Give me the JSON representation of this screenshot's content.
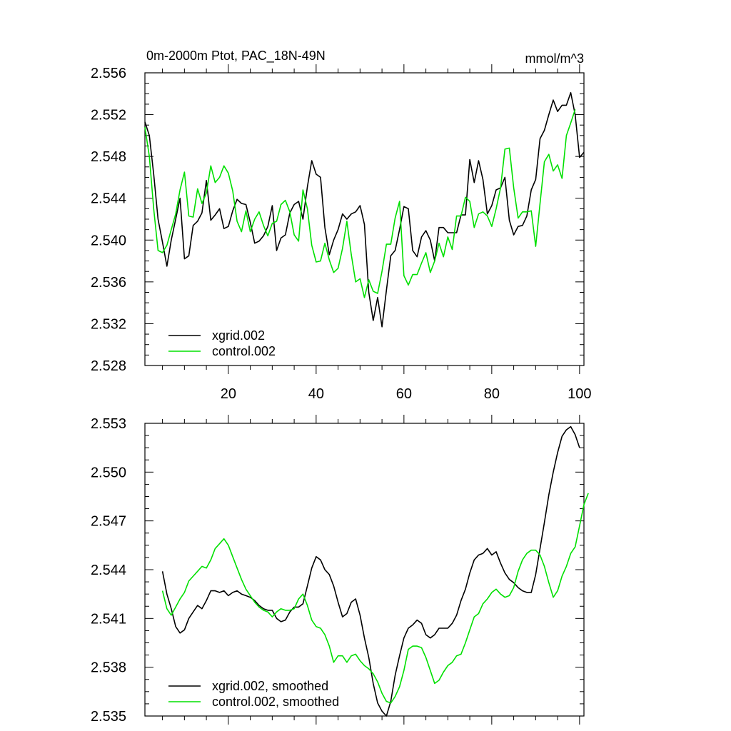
{
  "chart_data": [
    {
      "type": "line",
      "title": "0m-2000m Ptot, PAC_18N-49N",
      "units": "mmol/m^3",
      "xlim": [
        1,
        101
      ],
      "ylim": [
        2.528,
        2.556
      ],
      "x_ticks": [
        20,
        40,
        60,
        80,
        100
      ],
      "y_ticks": [
        "2.528",
        "2.532",
        "2.536",
        "2.540",
        "2.544",
        "2.548",
        "2.552",
        "2.556"
      ],
      "x_start": 1,
      "legend_position": "bottom-left",
      "series": [
        {
          "name": "xgrid.002",
          "color": "#000000",
          "values": [
            2.5513,
            2.55,
            2.5463,
            2.542,
            2.5398,
            2.5375,
            2.54,
            2.542,
            2.544,
            2.5382,
            2.5385,
            2.5414,
            2.5418,
            2.5426,
            2.5457,
            2.5419,
            2.5424,
            2.543,
            2.5411,
            2.5413,
            2.5428,
            2.5439,
            2.5435,
            2.5434,
            2.5417,
            2.5397,
            2.5399,
            2.5404,
            2.5413,
            2.5433,
            2.539,
            2.5402,
            2.5405,
            2.5426,
            2.5434,
            2.5437,
            2.542,
            2.5451,
            2.5476,
            2.5463,
            2.546,
            2.5412,
            2.5386,
            2.54,
            2.541,
            2.5425,
            2.542,
            2.5425,
            2.5427,
            2.5433,
            2.5415,
            2.535,
            2.5323,
            2.5345,
            2.5317,
            2.5352,
            2.5385,
            2.539,
            2.541,
            2.5432,
            2.543,
            2.539,
            2.5384,
            2.5403,
            2.5409,
            2.54,
            2.538,
            2.5412,
            2.5412,
            2.5407,
            2.5407,
            2.5407,
            2.5424,
            2.5424,
            2.5477,
            2.5455,
            2.5476,
            2.5458,
            2.5425,
            2.5433,
            2.5448,
            2.545,
            2.546,
            2.5419,
            2.5405,
            2.5413,
            2.5414,
            2.5423,
            2.5448,
            2.5458,
            2.5497,
            2.5505,
            2.552,
            2.5534,
            2.5523,
            2.5529,
            2.5529,
            2.5541,
            2.552,
            2.5479,
            2.5484
          ]
        },
        {
          "name": "control.002",
          "color": "#00e000",
          "values": [
            2.5508,
            2.548,
            2.543,
            2.539,
            2.5388,
            2.5395,
            2.541,
            2.5425,
            2.5448,
            2.5465,
            2.5423,
            2.5422,
            2.5449,
            2.5435,
            2.5445,
            2.5471,
            2.5455,
            2.546,
            2.5471,
            2.5464,
            2.5447,
            2.5418,
            2.5408,
            2.5428,
            2.5408,
            2.542,
            2.5427,
            2.5414,
            2.5404,
            2.5416,
            2.5418,
            2.5434,
            2.5438,
            2.5427,
            2.5405,
            2.5399,
            2.5448,
            2.543,
            2.5395,
            2.5379,
            2.538,
            2.5397,
            2.5381,
            2.5369,
            2.5373,
            2.5392,
            2.5418,
            2.5386,
            2.536,
            2.5363,
            2.5345,
            2.5362,
            2.5351,
            2.5349,
            2.537,
            2.5396,
            2.5396,
            2.5421,
            2.5437,
            2.5366,
            2.5357,
            2.5367,
            2.5367,
            2.5378,
            2.5388,
            2.5369,
            2.538,
            2.5397,
            2.5384,
            2.5403,
            2.5391,
            2.5423,
            2.5423,
            2.5441,
            2.5437,
            2.5412,
            2.5425,
            2.5427,
            2.5423,
            2.5413,
            2.543,
            2.545,
            2.5487,
            2.5488,
            2.545,
            2.5421,
            2.5427,
            2.5427,
            2.5428,
            2.5394,
            2.5435,
            2.5475,
            2.5482,
            2.5466,
            2.5472,
            2.5459,
            2.55,
            2.5512,
            2.5525
          ]
        }
      ]
    },
    {
      "type": "line",
      "xlim": [
        1,
        101
      ],
      "ylim": [
        2.535,
        2.553
      ],
      "x_ticks": [
        20,
        40,
        60,
        80,
        100
      ],
      "show_x_tick_labels": false,
      "y_ticks": [
        "2.535",
        "2.538",
        "2.541",
        "2.544",
        "2.547",
        "2.550",
        "2.553"
      ],
      "x_start": 5,
      "legend_position": "bottom-left",
      "series": [
        {
          "name": "xgrid.002, smoothed",
          "color": "#000000",
          "values": [
            2.5439,
            2.5425,
            2.5416,
            2.5405,
            2.5401,
            2.5403,
            2.541,
            2.5414,
            2.5418,
            2.5416,
            2.5421,
            2.5427,
            2.5427,
            2.5426,
            2.5427,
            2.5424,
            2.5426,
            2.5427,
            2.5425,
            2.5424,
            2.5423,
            2.5421,
            2.5418,
            2.5416,
            2.5415,
            2.5415,
            2.541,
            2.5408,
            2.5409,
            2.5414,
            2.5417,
            2.5417,
            2.5419,
            2.543,
            2.5441,
            2.5448,
            2.5446,
            2.544,
            2.5437,
            2.543,
            2.542,
            2.5411,
            2.5413,
            2.542,
            2.5422,
            2.5412,
            2.5398,
            2.5386,
            2.537,
            2.5358,
            2.5353,
            2.535,
            2.5359,
            2.5375,
            2.5387,
            2.5398,
            2.5404,
            2.5406,
            2.5409,
            2.5407,
            2.54,
            2.5398,
            2.54,
            2.5404,
            2.5404,
            2.5404,
            2.5407,
            2.5412,
            2.5421,
            2.5428,
            2.5438,
            2.5446,
            2.5449,
            2.545,
            2.5453,
            2.5449,
            2.5451,
            2.5444,
            2.5438,
            2.5434,
            2.5432,
            2.5429,
            2.5427,
            2.5426,
            2.5426,
            2.5437,
            2.5453,
            2.5469,
            2.5486,
            2.55,
            2.5512,
            2.5522,
            2.5526,
            2.5528,
            2.5523,
            2.5515
          ]
        },
        {
          "name": "control.002, smoothed",
          "color": "#00e000",
          "values": [
            2.5427,
            2.5416,
            2.5412,
            2.5417,
            2.5422,
            2.5426,
            2.5433,
            2.5436,
            2.5439,
            2.5442,
            2.5441,
            2.5446,
            2.5453,
            2.5456,
            2.5459,
            2.5455,
            2.5448,
            2.5441,
            2.5434,
            2.5428,
            2.5424,
            2.542,
            2.5417,
            2.5415,
            2.5414,
            2.5411,
            2.5414,
            2.5416,
            2.5415,
            2.5415,
            2.5416,
            2.5422,
            2.5425,
            2.5418,
            2.5409,
            2.5405,
            2.5404,
            2.54,
            2.5393,
            2.5383,
            2.5387,
            2.5387,
            2.5383,
            2.5387,
            2.5388,
            2.5384,
            2.5381,
            2.5379,
            2.5376,
            2.5371,
            2.5364,
            2.5359,
            2.5358,
            2.5362,
            2.5368,
            2.5378,
            2.5391,
            2.5393,
            2.5393,
            2.5392,
            2.5386,
            2.5378,
            2.537,
            2.5372,
            2.5377,
            2.5381,
            2.5383,
            2.5387,
            2.5388,
            2.5395,
            2.5403,
            2.5411,
            2.5413,
            2.5419,
            2.5422,
            2.5426,
            2.5428,
            2.5425,
            2.5423,
            2.5424,
            2.5429,
            2.5439,
            2.5446,
            2.545,
            2.5452,
            2.5452,
            2.5449,
            2.5442,
            2.5432,
            2.5423,
            2.5427,
            2.5436,
            2.5442,
            2.545,
            2.5454,
            2.5467,
            2.548,
            2.5487
          ]
        }
      ]
    }
  ]
}
